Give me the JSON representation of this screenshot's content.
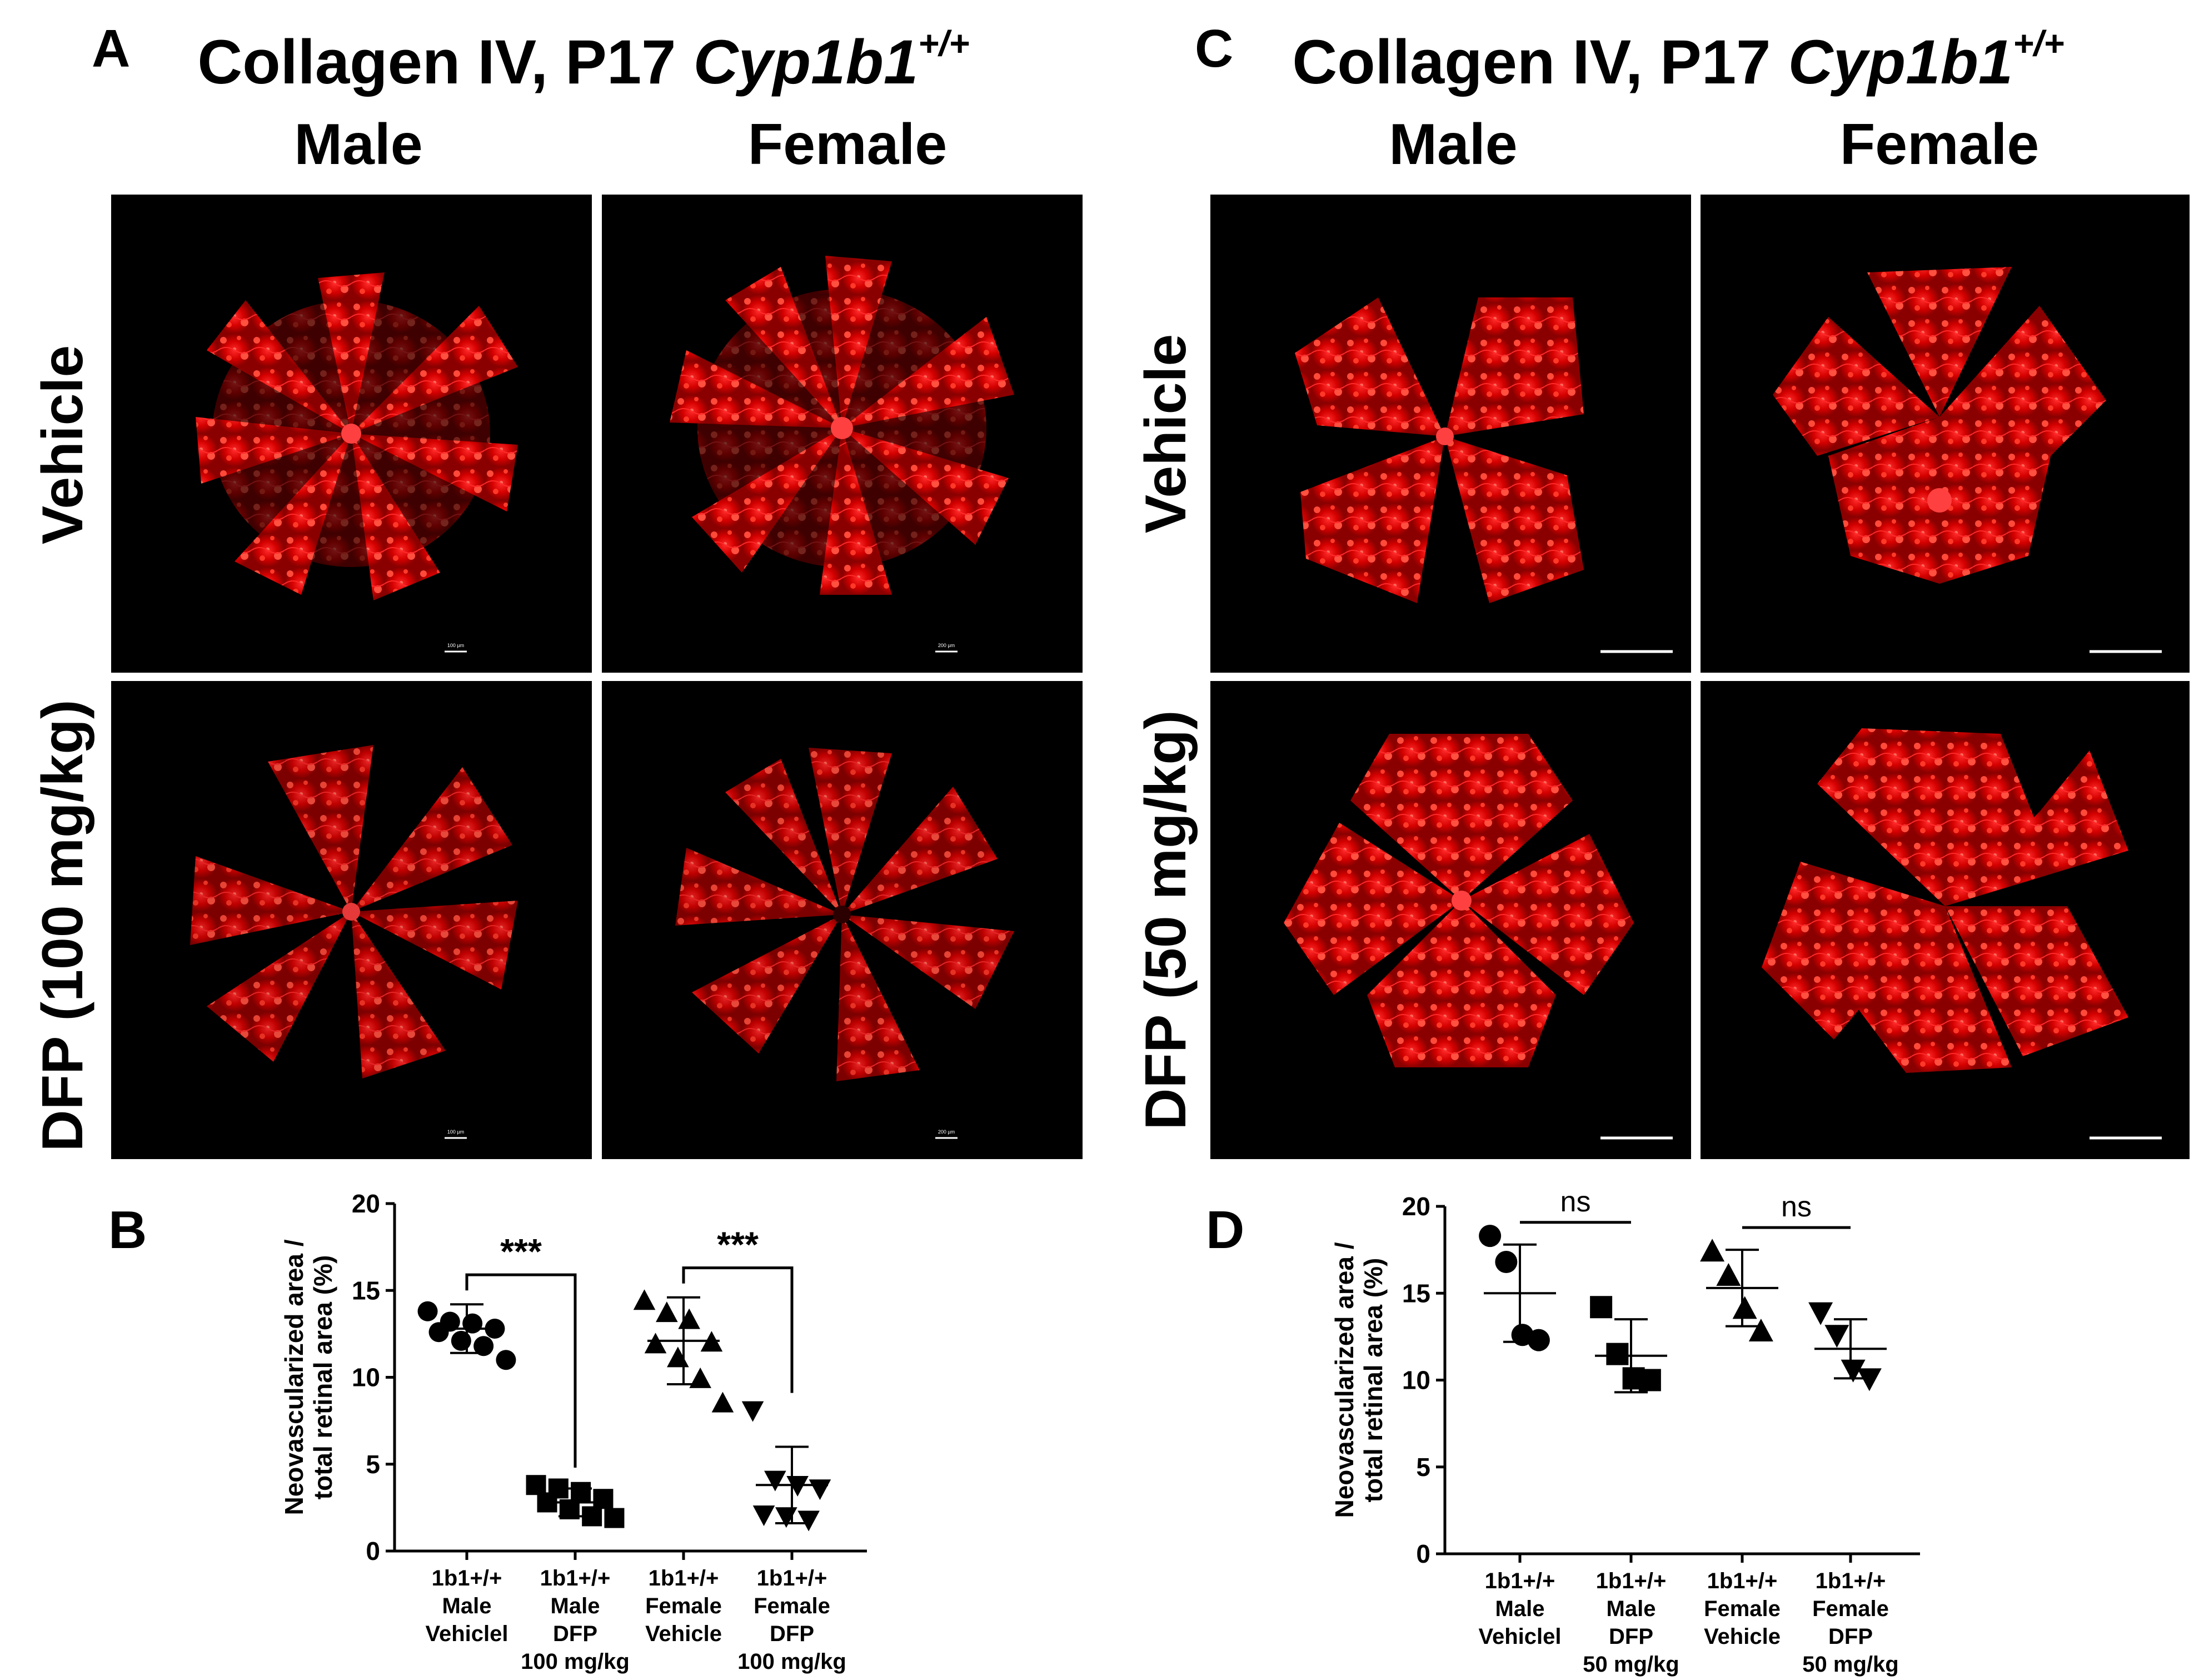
{
  "panels": {
    "A": {
      "letter": "A",
      "title_main": "Collagen IV, P17 ",
      "title_italic": "Cyp1b1",
      "title_sup": "+/+",
      "col_male": "Male",
      "col_female": "Female",
      "row_vehicle": "Vehicle",
      "row_treated": "DFP (100 mg/kg)",
      "scalebars": [
        "100 µm",
        "200 µm",
        "100 µm",
        "200 µm"
      ]
    },
    "C": {
      "letter": "C",
      "title_main": "Collagen IV, P17 ",
      "title_italic": "Cyp1b1",
      "title_sup": "+/+",
      "col_male": "Male",
      "col_female": "Female",
      "row_vehicle": "Vehicle",
      "row_treated": "DFP (50 mg/kg)"
    },
    "B": {
      "letter": "B"
    },
    "D": {
      "letter": "D"
    }
  },
  "chart_data": [
    {
      "panel": "B",
      "type": "scatter",
      "ylabel_line1": "Neovascularized area /",
      "ylabel_line2": "total retinal area (%)",
      "ylim": [
        0,
        20
      ],
      "yticks": [
        "0",
        "5",
        "10",
        "15",
        "20"
      ],
      "categories": [
        [
          "1b1+/+",
          "Male",
          "Vehiclel"
        ],
        [
          "1b1+/+",
          "Male",
          "DFP",
          "100 mg/kg"
        ],
        [
          "1b1+/+",
          "Female",
          "Vehicle"
        ],
        [
          "1b1+/+",
          "Female",
          "DFP",
          "100 mg/kg"
        ]
      ],
      "groups": [
        {
          "marker": "circle",
          "mean": 12.8,
          "sd": 1.4,
          "points": [
            13.8,
            13.2,
            13.1,
            12.8,
            12.6,
            12.1,
            11.8,
            11.0
          ]
        },
        {
          "marker": "square",
          "mean": 2.8,
          "sd": 0.8,
          "points": [
            3.8,
            3.6,
            3.4,
            3.0,
            2.8,
            2.4,
            2.0,
            1.9
          ]
        },
        {
          "marker": "triangle-up",
          "mean": 12.1,
          "sd": 2.5,
          "points": [
            14.4,
            13.7,
            13.3,
            12.0,
            11.9,
            11.1,
            9.9,
            8.5
          ]
        },
        {
          "marker": "triangle-down",
          "mean": 3.8,
          "sd": 2.2,
          "points": [
            8.1,
            4.1,
            3.8,
            3.6,
            2.1,
            2.0,
            1.8
          ]
        }
      ],
      "comparisons": [
        {
          "from": 0,
          "to": 1,
          "label": "***"
        },
        {
          "from": 2,
          "to": 3,
          "label": "***"
        }
      ]
    },
    {
      "panel": "D",
      "type": "scatter",
      "ylabel_line1": "Neovascularized area /",
      "ylabel_line2": "total retinal area (%)",
      "ylim": [
        0,
        20
      ],
      "yticks": [
        "0",
        "5",
        "10",
        "15",
        "20"
      ],
      "categories": [
        [
          "1b1+/+",
          "Male",
          "Vehiclel"
        ],
        [
          "1b1+/+",
          "Male",
          "DFP",
          "50 mg/kg"
        ],
        [
          "1b1+/+",
          "Female",
          "Vehicle"
        ],
        [
          "1b1+/+",
          "Female",
          "DFP",
          "50 mg/kg"
        ]
      ],
      "groups": [
        {
          "marker": "circle",
          "mean": 15.0,
          "sd": 2.8,
          "points": [
            18.3,
            16.8,
            12.6,
            12.3
          ]
        },
        {
          "marker": "square",
          "mean": 11.4,
          "sd": 2.1,
          "points": [
            14.2,
            11.5,
            10.1,
            10.0
          ]
        },
        {
          "marker": "triangle-up",
          "mean": 15.3,
          "sd": 2.2,
          "points": [
            17.4,
            16.0,
            14.1,
            12.8
          ]
        },
        {
          "marker": "triangle-down",
          "mean": 11.8,
          "sd": 1.7,
          "points": [
            13.9,
            12.6,
            10.6,
            10.1
          ]
        }
      ],
      "comparisons": [
        {
          "from": 0,
          "to": 1,
          "label": "ns"
        },
        {
          "from": 2,
          "to": 3,
          "label": "ns"
        }
      ]
    }
  ]
}
